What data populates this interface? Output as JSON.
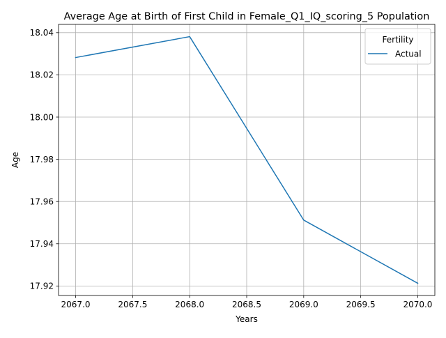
{
  "chart_data": {
    "type": "line",
    "title": "Average Age at Birth of First Child in Female_Q1_IQ_scoring_5 Population",
    "xlabel": "Years",
    "ylabel": "Age",
    "x": [
      2067,
      2068,
      2069,
      2070
    ],
    "series": [
      {
        "name": "Actual",
        "values": [
          18.0282,
          18.0381,
          17.9512,
          17.9213
        ],
        "color": "#1f77b4"
      }
    ],
    "xlim": [
      2066.85,
      2070.15
    ],
    "ylim": [
      17.9155,
      18.0439
    ],
    "xticks": [
      2067.0,
      2067.5,
      2068.0,
      2068.5,
      2069.0,
      2069.5,
      2070.0
    ],
    "xtick_labels": [
      "2067.0",
      "2067.5",
      "2068.0",
      "2068.5",
      "2069.0",
      "2069.5",
      "2070.0"
    ],
    "yticks": [
      17.92,
      17.94,
      17.96,
      17.98,
      18.0,
      18.02,
      18.04
    ],
    "ytick_labels": [
      "17.92",
      "17.94",
      "17.96",
      "17.98",
      "18.00",
      "18.02",
      "18.04"
    ],
    "grid": true,
    "legend": {
      "title": "Fertility",
      "placement": "top-right"
    }
  }
}
